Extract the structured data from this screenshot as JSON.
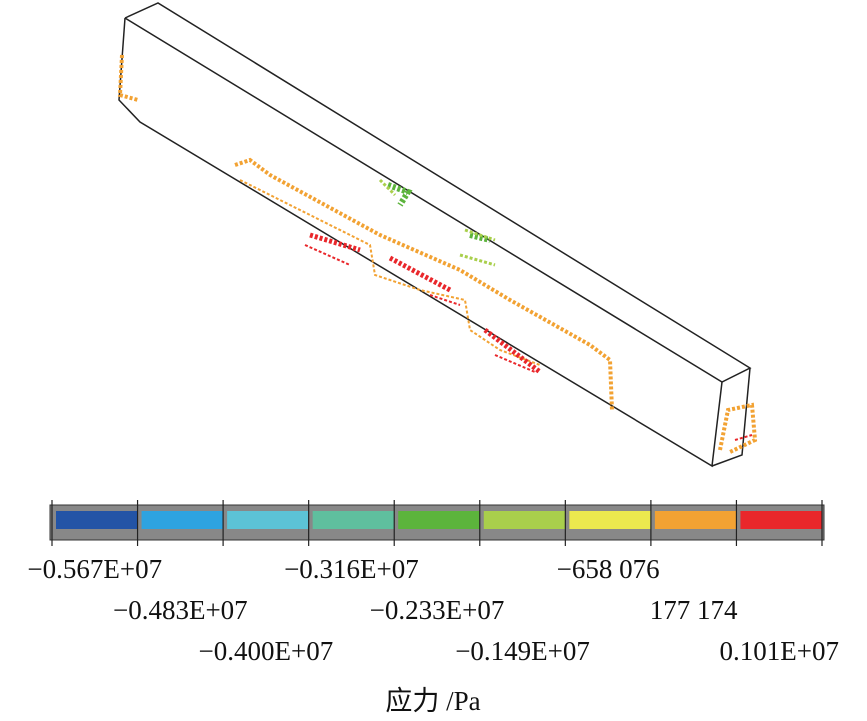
{
  "legend": {
    "colors": [
      "#2354a6",
      "#2ea3e0",
      "#5cc3d6",
      "#5fbf9e",
      "#5cb43c",
      "#a9cf4c",
      "#ebe84e",
      "#f2a233",
      "#e9272b"
    ],
    "labels": [
      "−0.567E+07",
      "−0.483E+07",
      "−0.400E+07",
      "−0.316E+07",
      "−0.233E+07",
      "−0.149E+07",
      "−658 076",
      "177 174",
      "0.101E+07"
    ],
    "title": "应力 /Pa"
  }
}
